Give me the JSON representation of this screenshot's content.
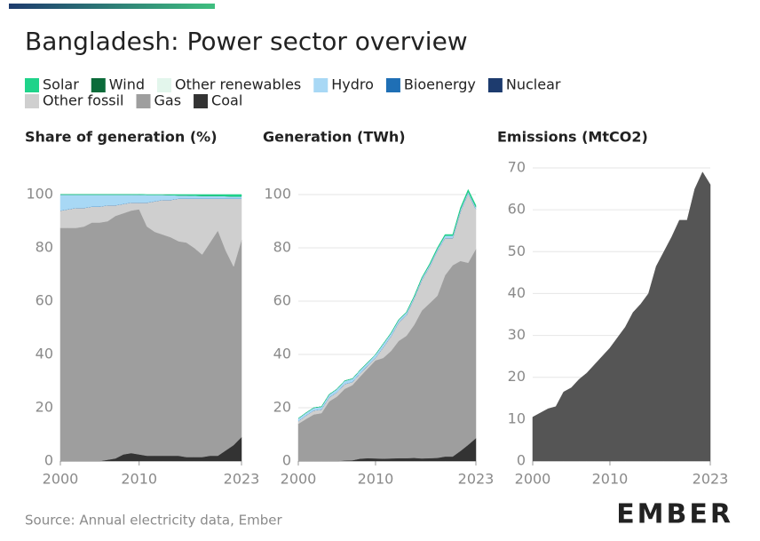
{
  "title": "Bangladesh: Power sector overview",
  "source": "Source: Annual electricity data, Ember",
  "logo": "EMBER",
  "chart_data": [
    {
      "type": "area",
      "stacked": true,
      "title": "Share of generation (%)",
      "x": [
        2000,
        2001,
        2002,
        2003,
        2004,
        2005,
        2006,
        2007,
        2008,
        2009,
        2010,
        2011,
        2012,
        2013,
        2014,
        2015,
        2016,
        2017,
        2018,
        2019,
        2020,
        2021,
        2022,
        2023
      ],
      "xlim": [
        2000,
        2023
      ],
      "xticks": [
        2000,
        2010,
        2023
      ],
      "ylim": [
        0,
        100
      ],
      "yticks": [
        0,
        20,
        40,
        60,
        80,
        100
      ],
      "grid": true,
      "series": [
        {
          "name": "Solar",
          "color": "#1fd38a",
          "values": [
            0,
            0,
            0,
            0,
            0,
            0,
            0,
            0,
            0,
            0,
            0.1,
            0.1,
            0.1,
            0.1,
            0.2,
            0.3,
            0.3,
            0.4,
            0.5,
            0.5,
            0.5,
            0.6,
            0.7,
            0.7
          ]
        },
        {
          "name": "Wind",
          "color": "#0b6b3a",
          "values": [
            0,
            0,
            0,
            0,
            0,
            0,
            0,
            0,
            0,
            0,
            0,
            0,
            0,
            0,
            0,
            0,
            0,
            0,
            0,
            0,
            0,
            0,
            0,
            0
          ]
        },
        {
          "name": "Other renewables",
          "color": "#e3f6ec",
          "values": [
            0,
            0,
            0,
            0,
            0,
            0,
            0,
            0,
            0,
            0,
            0,
            0,
            0,
            0,
            0,
            0,
            0,
            0,
            0,
            0,
            0,
            0,
            0,
            0
          ]
        },
        {
          "name": "Hydro",
          "color": "#a8d8f5",
          "values": [
            6,
            5.5,
            5,
            5,
            4.5,
            4.5,
            4,
            4,
            3.5,
            3,
            3,
            2.9,
            2.4,
            1.9,
            1.8,
            1.2,
            1.2,
            1.1,
            1,
            1,
            1,
            0.9,
            0.8,
            0.8
          ]
        },
        {
          "name": "Bioenergy",
          "color": "#1f6fb5",
          "values": [
            0,
            0,
            0,
            0,
            0,
            0,
            0,
            0,
            0,
            0,
            0,
            0,
            0,
            0,
            0,
            0,
            0,
            0,
            0,
            0,
            0,
            0,
            0,
            0
          ]
        },
        {
          "name": "Nuclear",
          "color": "#1d3b6e",
          "values": [
            0,
            0,
            0,
            0,
            0,
            0,
            0,
            0,
            0,
            0,
            0,
            0,
            0,
            0,
            0,
            0,
            0,
            0,
            0,
            0,
            0,
            0,
            0,
            0
          ]
        },
        {
          "name": "Other fossil",
          "color": "#cfcfcf",
          "values": [
            6.5,
            7,
            7.5,
            7,
            6,
            6,
            6,
            4,
            3.5,
            3,
            2.5,
            9,
            11.5,
            13,
            14,
            16,
            16.5,
            18.5,
            21,
            16.5,
            12,
            19.5,
            25.5,
            15.5
          ]
        },
        {
          "name": "Gas",
          "color": "#9e9e9e",
          "values": [
            87.5,
            87.5,
            87.5,
            88,
            89.5,
            89.5,
            89.5,
            91,
            90.5,
            91,
            92,
            86,
            84,
            83,
            82,
            80.5,
            80.5,
            78.5,
            76,
            80,
            84.5,
            75,
            67,
            74
          ]
        },
        {
          "name": "Coal",
          "color": "#333333",
          "values": [
            0,
            0,
            0,
            0,
            0,
            0,
            0.5,
            1,
            2.5,
            3,
            2.5,
            2,
            2,
            2,
            2,
            2,
            1.5,
            1.5,
            1.5,
            2,
            2,
            4,
            6,
            9
          ]
        }
      ]
    },
    {
      "type": "area",
      "stacked": true,
      "title": "Generation (TWh)",
      "x": [
        2000,
        2001,
        2002,
        2003,
        2004,
        2005,
        2006,
        2007,
        2008,
        2009,
        2010,
        2011,
        2012,
        2013,
        2014,
        2015,
        2016,
        2017,
        2018,
        2019,
        2020,
        2021,
        2022,
        2023
      ],
      "xlim": [
        2000,
        2023
      ],
      "xticks": [
        2000,
        2010,
        2023
      ],
      "ylim": [
        0,
        105
      ],
      "yticks": [
        0,
        20,
        40,
        60,
        80,
        100
      ],
      "grid": true,
      "series": [
        {
          "name": "Solar",
          "color": "#1fd38a",
          "values": [
            0,
            0,
            0,
            0,
            0,
            0,
            0,
            0,
            0,
            0,
            0,
            0,
            0.1,
            0.1,
            0.1,
            0.2,
            0.2,
            0.3,
            0.4,
            0.4,
            0.4,
            0.6,
            0.7,
            0.7
          ]
        },
        {
          "name": "Wind",
          "color": "#0b6b3a",
          "values": [
            0,
            0,
            0,
            0,
            0,
            0,
            0,
            0,
            0,
            0,
            0,
            0,
            0,
            0,
            0,
            0,
            0,
            0,
            0,
            0,
            0,
            0,
            0,
            0
          ]
        },
        {
          "name": "Other renewables",
          "color": "#e3f6ec",
          "values": [
            0,
            0,
            0,
            0,
            0,
            0,
            0,
            0,
            0,
            0,
            0,
            0,
            0,
            0,
            0,
            0,
            0,
            0,
            0,
            0,
            0,
            0,
            0,
            0
          ]
        },
        {
          "name": "Hydro",
          "color": "#a8d8f5",
          "values": [
            1,
            1,
            1,
            1,
            1.1,
            1.2,
            1.2,
            1.2,
            1.2,
            1.1,
            1.2,
            1.3,
            1.2,
            1,
            1,
            0.7,
            0.8,
            0.8,
            0.8,
            0.9,
            0.9,
            0.9,
            0.8,
            0.8
          ]
        },
        {
          "name": "Bioenergy",
          "color": "#1f6fb5",
          "values": [
            0,
            0,
            0,
            0,
            0,
            0,
            0,
            0,
            0,
            0,
            0,
            0,
            0,
            0,
            0,
            0,
            0,
            0,
            0,
            0,
            0,
            0,
            0,
            0
          ]
        },
        {
          "name": "Nuclear",
          "color": "#1d3b6e",
          "values": [
            0,
            0,
            0,
            0,
            0,
            0,
            0,
            0,
            0,
            0,
            0,
            0,
            0,
            0,
            0,
            0,
            0,
            0,
            0,
            0,
            0,
            0,
            0,
            0
          ]
        },
        {
          "name": "Other fossil",
          "color": "#cfcfcf",
          "values": [
            1,
            1.3,
            1.5,
            1.4,
            1.5,
            1.6,
            1.8,
            1.2,
            1.2,
            1.1,
            1,
            4,
            5.5,
            6.9,
            7.8,
            9.9,
            11.4,
            13.7,
            16.8,
            14,
            10.2,
            18.5,
            26,
            14.9
          ]
        },
        {
          "name": "Gas",
          "color": "#9e9e9e",
          "values": [
            14,
            15.8,
            17.5,
            18,
            22.4,
            24.2,
            26.9,
            28.2,
            30.8,
            33.7,
            36.8,
            37.8,
            40.3,
            44,
            45.9,
            49.9,
            55.5,
            58.1,
            60.8,
            68,
            71.8,
            71.3,
            68.3,
            71
          ]
        },
        {
          "name": "Coal",
          "color": "#333333",
          "values": [
            0,
            0,
            0,
            0,
            0,
            0,
            0.2,
            0.3,
            0.9,
            1.1,
            1,
            0.9,
            1,
            1.1,
            1.1,
            1.2,
            1,
            1.1,
            1.2,
            1.7,
            1.7,
            3.8,
            6.1,
            8.6
          ]
        }
      ]
    },
    {
      "type": "area",
      "stacked": true,
      "title": "Emissions (MtCO2)",
      "x": [
        2000,
        2001,
        2002,
        2003,
        2004,
        2005,
        2006,
        2007,
        2008,
        2009,
        2010,
        2011,
        2012,
        2013,
        2014,
        2015,
        2016,
        2017,
        2018,
        2019,
        2020,
        2021,
        2022,
        2023
      ],
      "xlim": [
        2000,
        2023
      ],
      "xticks": [
        2000,
        2010,
        2023
      ],
      "ylim": [
        0,
        70
      ],
      "yticks": [
        0,
        10,
        20,
        30,
        40,
        50,
        60,
        70
      ],
      "grid": true,
      "series": [
        {
          "color": "#555555",
          "values": [
            10.5,
            11.5,
            12.5,
            13,
            16.5,
            17.5,
            19.5,
            21,
            23,
            25,
            27,
            29.5,
            32,
            35.5,
            37.5,
            40,
            46.5,
            50,
            53.5,
            57.5,
            57.5,
            65,
            69,
            66
          ]
        }
      ]
    }
  ]
}
